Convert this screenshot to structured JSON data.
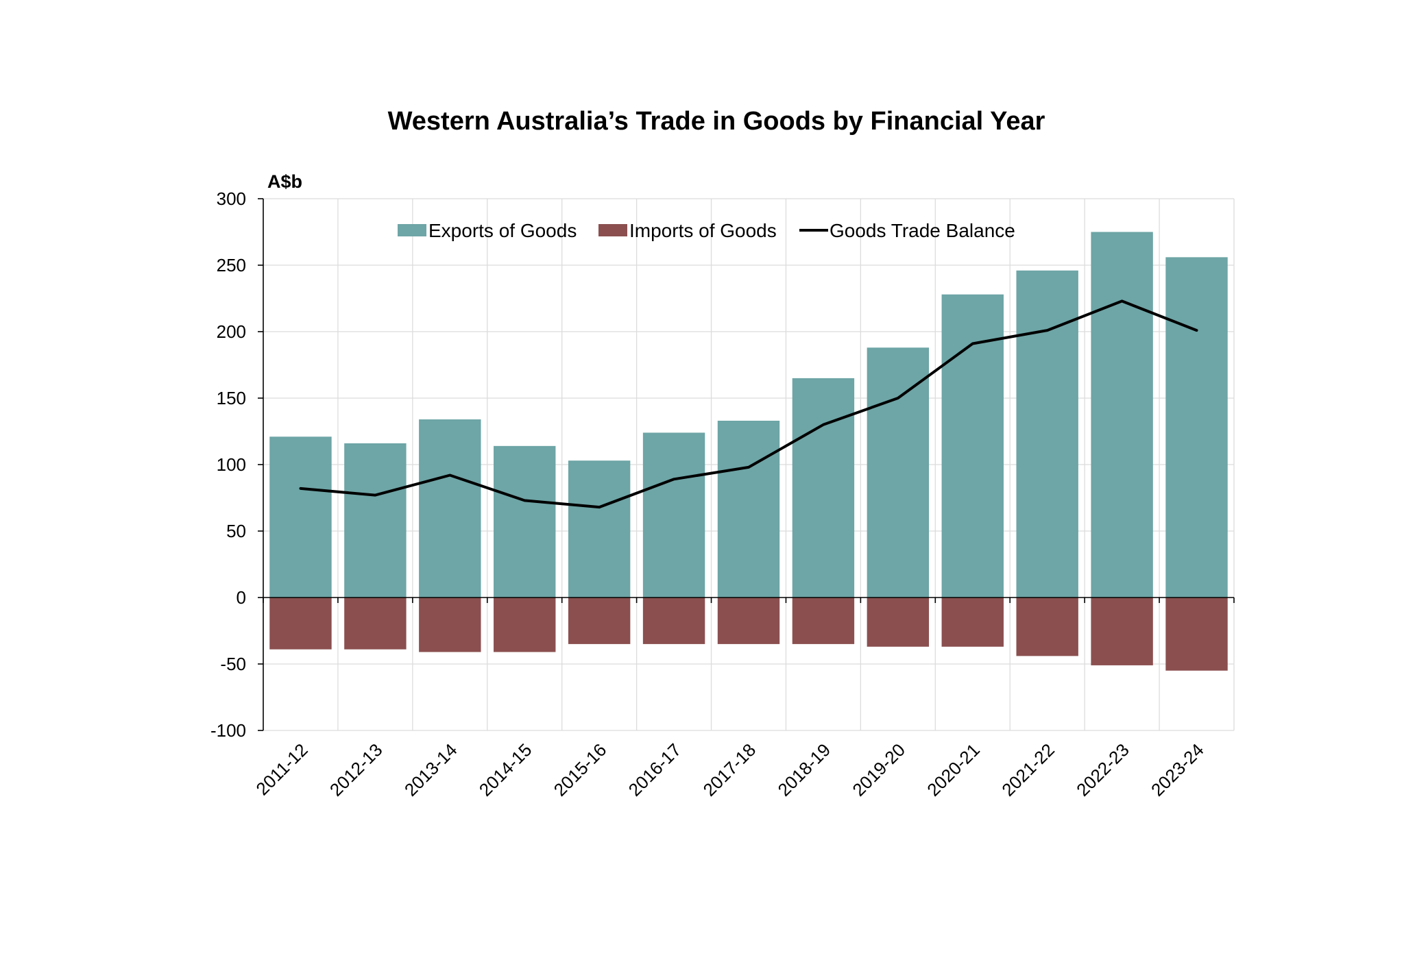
{
  "colors": {
    "exports": "#6ea5a6",
    "imports": "#8b4f4f",
    "balance": "#000000",
    "grid": "#dcdcdc",
    "axis": "#000000"
  },
  "chart_data": {
    "type": "bar",
    "title": "Western Australia’s Trade in Goods by Financial Year",
    "unit_label": "A$b",
    "xlabel": "",
    "ylabel": "A$b",
    "ylim": [
      -100,
      300
    ],
    "yticks": [
      300,
      250,
      200,
      150,
      100,
      50,
      0,
      -50,
      -100
    ],
    "grid": true,
    "legend_position": "top-center",
    "categories": [
      "2011-12",
      "2012-13",
      "2013-14",
      "2014-15",
      "2015-16",
      "2016-17",
      "2017-18",
      "2018-19",
      "2019-20",
      "2020-21",
      "2021-22",
      "2022-23",
      "2023-24"
    ],
    "series": [
      {
        "name": "Exports of Goods",
        "type": "bar",
        "values": [
          121,
          116,
          134,
          114,
          103,
          124,
          133,
          165,
          188,
          228,
          246,
          275,
          256
        ]
      },
      {
        "name": "Imports of Goods",
        "type": "bar",
        "values": [
          -39,
          -39,
          -41,
          -41,
          -35,
          -35,
          -35,
          -35,
          -37,
          -37,
          -44,
          -51,
          -55
        ]
      },
      {
        "name": "Goods Trade Balance",
        "type": "line",
        "values": [
          82,
          77,
          92,
          73,
          68,
          89,
          98,
          130,
          150,
          191,
          201,
          223,
          201
        ]
      }
    ]
  }
}
